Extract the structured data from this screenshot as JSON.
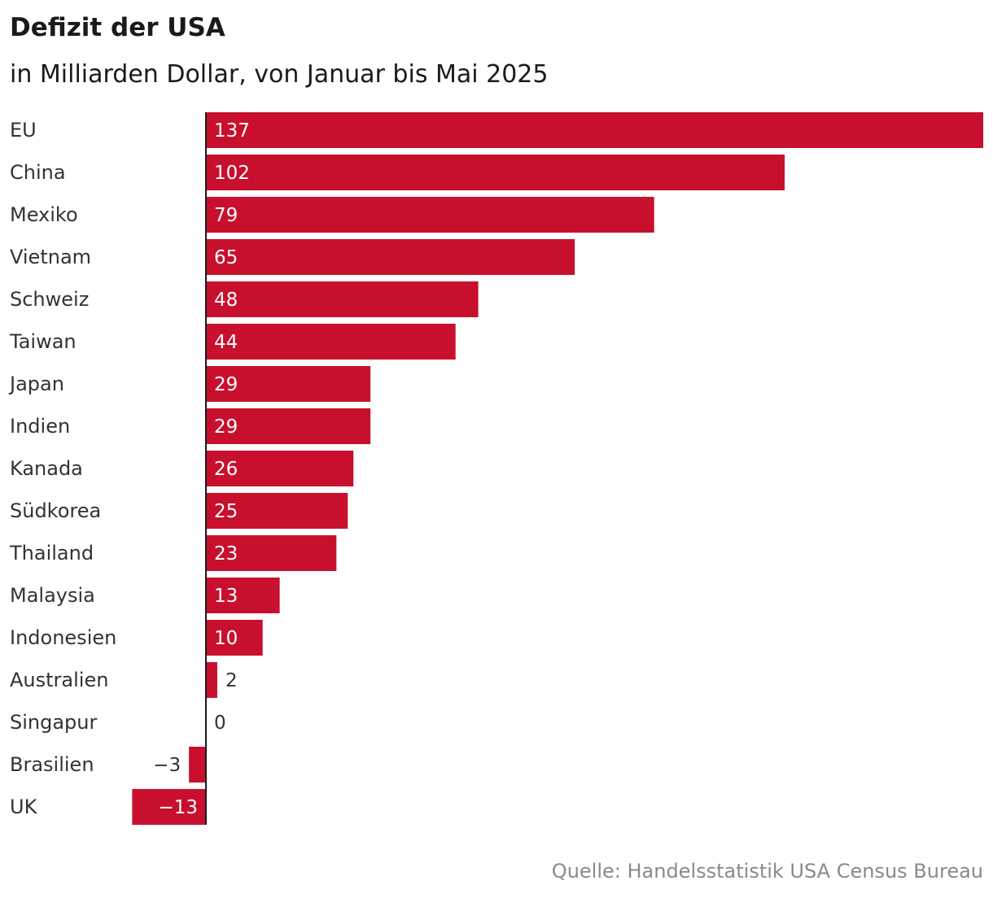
{
  "header": {
    "title": "Defizit der USA",
    "subtitle": "in Milliarden Dollar, von Januar bis Mai 2025"
  },
  "footer": {
    "source": "Quelle: Handelsstatistik USA Census Bureau"
  },
  "colors": {
    "bar": "#c8102e",
    "axis": "#1a1a1a"
  },
  "chart_data": {
    "type": "bar",
    "orientation": "horizontal",
    "categories": [
      "EU",
      "China",
      "Mexiko",
      "Vietnam",
      "Schweiz",
      "Taiwan",
      "Japan",
      "Indien",
      "Kanada",
      "Südkorea",
      "Thailand",
      "Malaysia",
      "Indonesien",
      "Australien",
      "Singapur",
      "Brasilien",
      "UK"
    ],
    "values": [
      137,
      102,
      79,
      65,
      48,
      44,
      29,
      29,
      26,
      25,
      23,
      13,
      10,
      2,
      0,
      -3,
      -13
    ],
    "value_labels": [
      "137",
      "102",
      "79",
      "65",
      "48",
      "44",
      "29",
      "29",
      "26",
      "25",
      "23",
      "13",
      "10",
      "2",
      "0",
      "−3",
      "−13"
    ],
    "xlim": [
      -13,
      137
    ],
    "grid": false,
    "legend": "none"
  }
}
